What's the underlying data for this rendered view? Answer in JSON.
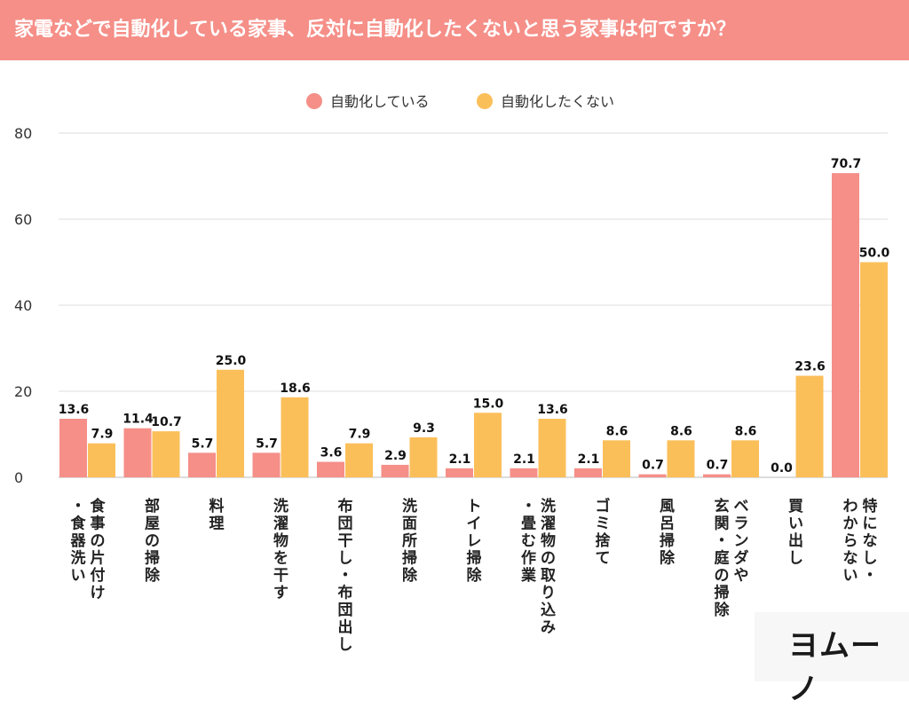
{
  "title": "家電などで自動化している家事、反対に自動化したくないと思う家事は何ですか？",
  "logo": "ヨムーノ",
  "colors": {
    "header": "#f58f88",
    "series1": "#f58f88",
    "series2": "#fbbf5a",
    "grid": "#dddddd"
  },
  "chart_data": {
    "type": "bar",
    "categories": [
      "食事の片付け・食器洗い",
      "部屋の掃除",
      "料理",
      "洗濯物を干す",
      "布団干し・布団出し",
      "洗面所掃除",
      "トイレ掃除",
      "洗濯物の取り込み・畳む作業",
      "ゴミ捨て",
      "風呂掃除",
      "玄関・庭の掃除ベランダや",
      "買い出し",
      "特になし・わからない"
    ],
    "category_lines": [
      [
        "食事の片付け",
        "・食器洗い"
      ],
      [
        "部屋の掃除"
      ],
      [
        "料理"
      ],
      [
        "洗濯物を干す"
      ],
      [
        "布団干し・布団出し"
      ],
      [
        "洗面所掃除"
      ],
      [
        "トイレ掃除"
      ],
      [
        "洗濯物の取り込み",
        "・畳む作業"
      ],
      [
        "ゴミ捨て"
      ],
      [
        "風呂掃除"
      ],
      [
        "ベランダや",
        "玄関・庭の掃除"
      ],
      [
        "買い出し"
      ],
      [
        "特になし・",
        "わからない"
      ]
    ],
    "series": [
      {
        "name": "自動化している",
        "values": [
          13.6,
          11.4,
          5.7,
          5.7,
          3.6,
          2.9,
          2.1,
          2.1,
          2.1,
          0.7,
          0.7,
          0.0,
          70.7
        ]
      },
      {
        "name": "自動化したくない",
        "values": [
          7.9,
          10.7,
          25.0,
          18.6,
          7.9,
          9.3,
          15.0,
          13.6,
          8.6,
          8.6,
          8.6,
          23.6,
          50.0
        ]
      }
    ],
    "ylim": [
      0,
      80
    ],
    "yticks": [
      0,
      20,
      40,
      60,
      80
    ],
    "grid": true,
    "legend_position": "top-center"
  }
}
